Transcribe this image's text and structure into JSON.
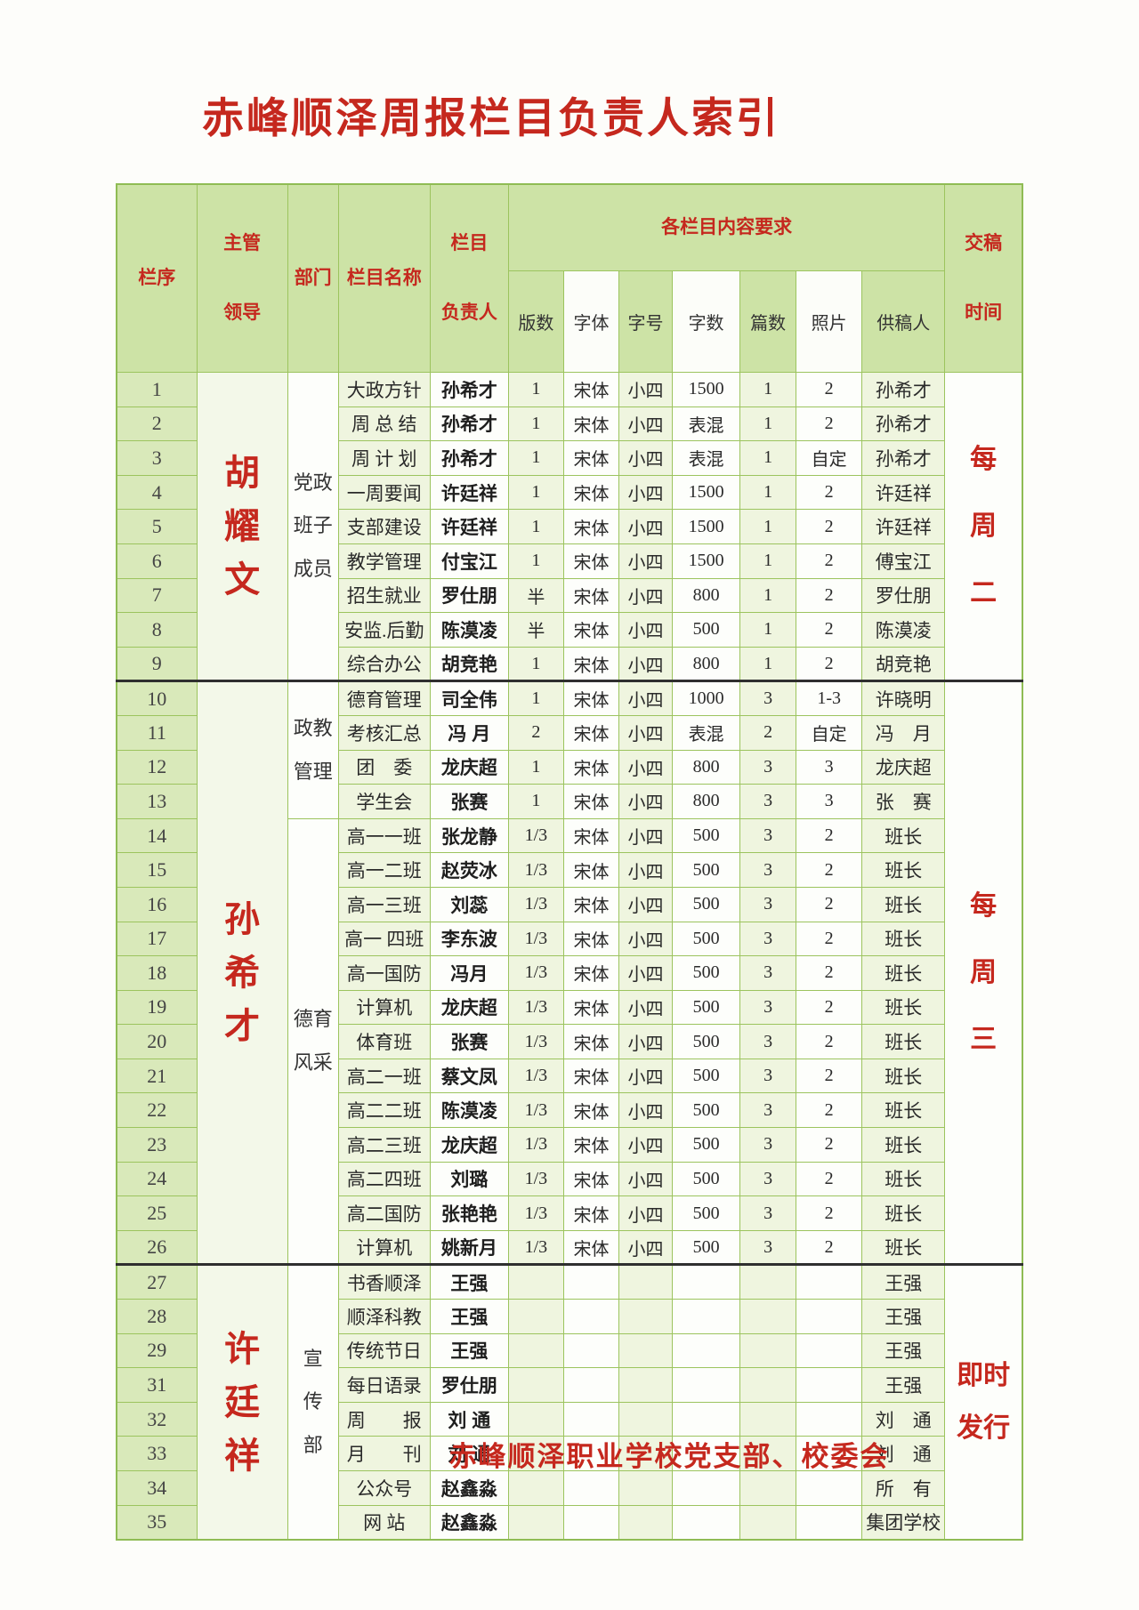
{
  "page": {
    "title": "赤峰顺泽周报栏目负责人索引",
    "footer": "赤峰顺泽职业学校党支部、校委会"
  },
  "colors": {
    "accent_red": "#c5281e",
    "header_green": "#cde3a6",
    "pale_green": "#eff5df",
    "index_green": "#d9e9ba",
    "border_green": "#9cc45e"
  },
  "header": {
    "col_no": "栏序",
    "supervisor_lines": [
      "主管",
      "领导"
    ],
    "department": "部门",
    "column_name": "栏目名称",
    "owner_lines": [
      "栏目",
      "负责人"
    ],
    "requirements": "各栏目内容要求",
    "sub_headers": [
      "版数",
      "字体",
      "字号",
      "字数",
      "篇数",
      "照片",
      "供稿人"
    ],
    "deadline_lines": [
      "交稿",
      "时间"
    ]
  },
  "row_fields": [
    "no",
    "name",
    "owner",
    "pages",
    "font",
    "size",
    "words",
    "articles",
    "photos",
    "contributor"
  ],
  "sections": [
    {
      "supervisor": "胡耀文",
      "deadline_lines": [
        "每",
        "周",
        "二"
      ],
      "groups": [
        {
          "department_lines": [
            "党政",
            "班子",
            "成员"
          ],
          "rows": [
            [
              "1",
              "大政方针",
              "孙希才",
              "1",
              "宋体",
              "小四",
              "1500",
              "1",
              "2",
              "孙希才"
            ],
            [
              "2",
              "周 总 结",
              "孙希才",
              "1",
              "宋体",
              "小四",
              "表混",
              "1",
              "2",
              "孙希才"
            ],
            [
              "3",
              "周 计 划",
              "孙希才",
              "1",
              "宋体",
              "小四",
              "表混",
              "1",
              "自定",
              "孙希才"
            ],
            [
              "4",
              "一周要闻",
              "许廷祥",
              "1",
              "宋体",
              "小四",
              "1500",
              "1",
              "2",
              "许廷祥"
            ],
            [
              "5",
              "支部建设",
              "许廷祥",
              "1",
              "宋体",
              "小四",
              "1500",
              "1",
              "2",
              "许廷祥"
            ],
            [
              "6",
              "教学管理",
              "付宝江",
              "1",
              "宋体",
              "小四",
              "1500",
              "1",
              "2",
              "傅宝江"
            ],
            [
              "7",
              "招生就业",
              "罗仕朋",
              "半",
              "宋体",
              "小四",
              "800",
              "1",
              "2",
              "罗仕朋"
            ],
            [
              "8",
              "安监.后勤",
              "陈漠凌",
              "半",
              "宋体",
              "小四",
              "500",
              "1",
              "2",
              "陈漠凌"
            ],
            [
              "9",
              "综合办公",
              "胡竞艳",
              "1",
              "宋体",
              "小四",
              "800",
              "1",
              "2",
              "胡竞艳"
            ]
          ]
        }
      ]
    },
    {
      "supervisor": "孙希才",
      "deadline_lines": [
        "每",
        "周",
        "三"
      ],
      "groups": [
        {
          "department_lines": [
            "政教",
            "管理"
          ],
          "rows": [
            [
              "10",
              "德育管理",
              "司全伟",
              "1",
              "宋体",
              "小四",
              "1000",
              "3",
              "1-3",
              "许晓明"
            ],
            [
              "11",
              "考核汇总",
              "冯 月",
              "2",
              "宋体",
              "小四",
              "表混",
              "2",
              "自定",
              "冯　月"
            ],
            [
              "12",
              "团　委",
              "龙庆超",
              "1",
              "宋体",
              "小四",
              "800",
              "3",
              "3",
              "龙庆超"
            ],
            [
              "13",
              "学生会",
              "张赛",
              "1",
              "宋体",
              "小四",
              "800",
              "3",
              "3",
              "张　赛"
            ]
          ]
        },
        {
          "department_lines": [
            "德育",
            "风采"
          ],
          "rows": [
            [
              "14",
              "高一一班",
              "张龙静",
              "1/3",
              "宋体",
              "小四",
              "500",
              "3",
              "2",
              "班长"
            ],
            [
              "15",
              "高一二班",
              "赵荧冰",
              "1/3",
              "宋体",
              "小四",
              "500",
              "3",
              "2",
              "班长"
            ],
            [
              "16",
              "高一三班",
              "刘蕊",
              "1/3",
              "宋体",
              "小四",
              "500",
              "3",
              "2",
              "班长"
            ],
            [
              "17",
              "高一 四班",
              "李东波",
              "1/3",
              "宋体",
              "小四",
              "500",
              "3",
              "2",
              "班长"
            ],
            [
              "18",
              "高一国防",
              "冯月",
              "1/3",
              "宋体",
              "小四",
              "500",
              "3",
              "2",
              "班长"
            ],
            [
              "19",
              "计算机",
              "龙庆超",
              "1/3",
              "宋体",
              "小四",
              "500",
              "3",
              "2",
              "班长"
            ],
            [
              "20",
              "体育班",
              "张赛",
              "1/3",
              "宋体",
              "小四",
              "500",
              "3",
              "2",
              "班长"
            ],
            [
              "21",
              "高二一班",
              "蔡文凤",
              "1/3",
              "宋体",
              "小四",
              "500",
              "3",
              "2",
              "班长"
            ],
            [
              "22",
              "高二二班",
              "陈漠凌",
              "1/3",
              "宋体",
              "小四",
              "500",
              "3",
              "2",
              "班长"
            ],
            [
              "23",
              "高二三班",
              "龙庆超",
              "1/3",
              "宋体",
              "小四",
              "500",
              "3",
              "2",
              "班长"
            ],
            [
              "24",
              "高二四班",
              "刘璐",
              "1/3",
              "宋体",
              "小四",
              "500",
              "3",
              "2",
              "班长"
            ],
            [
              "25",
              "高二国防",
              "张艳艳",
              "1/3",
              "宋体",
              "小四",
              "500",
              "3",
              "2",
              "班长"
            ],
            [
              "26",
              "计算机",
              "姚新月",
              "1/3",
              "宋体",
              "小四",
              "500",
              "3",
              "2",
              "班长"
            ]
          ]
        }
      ]
    },
    {
      "supervisor": "许廷祥",
      "deadline_lines": [
        "即时",
        "发行"
      ],
      "groups": [
        {
          "department_lines": [
            "宣",
            "传",
            "部"
          ],
          "rows": [
            [
              "27",
              "书香顺泽",
              "王强",
              "",
              "",
              "",
              "",
              "",
              "",
              "王强"
            ],
            [
              "28",
              "顺泽科教",
              "王强",
              "",
              "",
              "",
              "",
              "",
              "",
              "王强"
            ],
            [
              "29",
              "传统节日",
              "王强",
              "",
              "",
              "",
              "",
              "",
              "",
              "王强"
            ],
            [
              "31",
              "每日语录",
              "罗仕朋",
              "",
              "",
              "",
              "",
              "",
              "",
              "王强"
            ],
            [
              "32",
              "周　　报",
              "刘 通",
              "",
              "",
              "",
              "",
              "",
              "",
              "刘　通"
            ],
            [
              "33",
              "月　　刊",
              "刘 通",
              "",
              "",
              "",
              "",
              "",
              "",
              "刘　通"
            ],
            [
              "34",
              "公众号",
              "赵鑫淼",
              "",
              "",
              "",
              "",
              "",
              "",
              "所　有"
            ],
            [
              "35",
              "网 站",
              "赵鑫淼",
              "",
              "",
              "",
              "",
              "",
              "",
              "集团学校"
            ]
          ]
        }
      ]
    }
  ]
}
